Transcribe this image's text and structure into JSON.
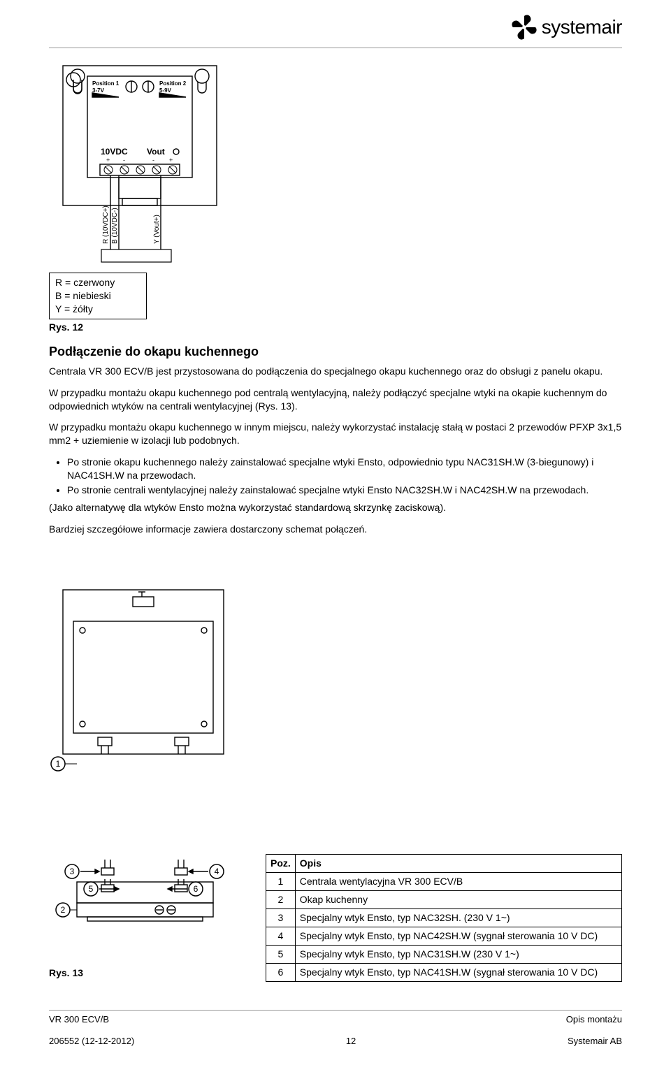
{
  "brand": {
    "name": "systemair"
  },
  "pcb": {
    "pos1_label": "Position 1",
    "pos1_range": "3-7V",
    "pos2_label": "Position 2",
    "pos2_range": "5-9V",
    "vdc_label": "10VDC",
    "vout_label": "Vout",
    "plus": "+",
    "minus": "-",
    "wire_r": "R (10VDC+)",
    "wire_b": "B (10VDC-)",
    "wire_y": "Y (Vout+)",
    "legend": {
      "r": "R = czerwony",
      "b": "B = niebieski",
      "y": "Y = żółty"
    },
    "caption": "Rys. 12"
  },
  "section": {
    "title": "Podłączenie do okapu kuchennego",
    "p1": "Centrala VR 300 ECV/B jest przystosowana do podłączenia do specjalnego okapu kuchennego oraz do obsługi z panelu okapu.",
    "p2": "W przypadku montażu okapu kuchennego pod centralą wentylacyjną, należy podłączyć specjalne wtyki na okapie kuchennym do odpowiednich wtyków na centrali wentylacyjnej (Rys. 13).",
    "p3": "W przypadku montażu okapu kuchennego w innym miejscu, należy wykorzystać instalację stałą w postaci 2 przewodów PFXP 3x1,5 mm2 + uziemienie w izolacji lub podobnych.",
    "b1": "Po stronie okapu kuchennego należy zainstalować specjalne wtyki Ensto, odpowiednio typu NAC31SH.W (3-biegunowy) i NAC41SH.W na przewodach.",
    "b2": "Po stronie centrali wentylacyjnej należy zainstalować specjalne wtyki Ensto NAC32SH.W i NAC42SH.W na przewodach.",
    "p4": "(Jako alternatywę dla wtyków Ensto można wykorzystać standardową skrzynkę zaciskową).",
    "p5": "Bardziej szczegółowe informacje zawiera dostarczony schemat połączeń."
  },
  "parts_table": {
    "col1": "Poz.",
    "col2": "Opis",
    "rows": [
      {
        "poz": "1",
        "opis": "Centrala wentylacyjna VR 300 ECV/B"
      },
      {
        "poz": "2",
        "opis": "Okap kuchenny"
      },
      {
        "poz": "3",
        "opis": "Specjalny wtyk Ensto, typ NAC32SH. (230 V 1~)"
      },
      {
        "poz": "4",
        "opis": "Specjalny wtyk Ensto, typ NAC42SH.W (sygnał sterowania 10 V DC)"
      },
      {
        "poz": "5",
        "opis": "Specjalny wtyk Ensto, typ NAC31SH.W (230 V 1~)"
      },
      {
        "poz": "6",
        "opis": "Specjalny wtyk Ensto, typ NAC41SH.W (sygnał sterowania 10 V DC)"
      }
    ]
  },
  "fig13_caption": "Rys. 13",
  "callouts": {
    "c1": "1",
    "c2": "2",
    "c3": "3",
    "c4": "4",
    "c5": "5",
    "c6": "6"
  },
  "footer": {
    "left": "VR 300 ECV/B",
    "right": "Opis montażu",
    "sub_left": "206552 (12-12-2012)",
    "page": "12",
    "sub_right": "Systemair AB"
  },
  "styling": {
    "text_color": "#000000",
    "bg_color": "#ffffff",
    "rule_color": "#999999",
    "stroke": "#000000",
    "stroke_width": 1.4,
    "font_body_pt": 14,
    "font_title_pt": 18,
    "font_pcb_label_pt": 8
  }
}
